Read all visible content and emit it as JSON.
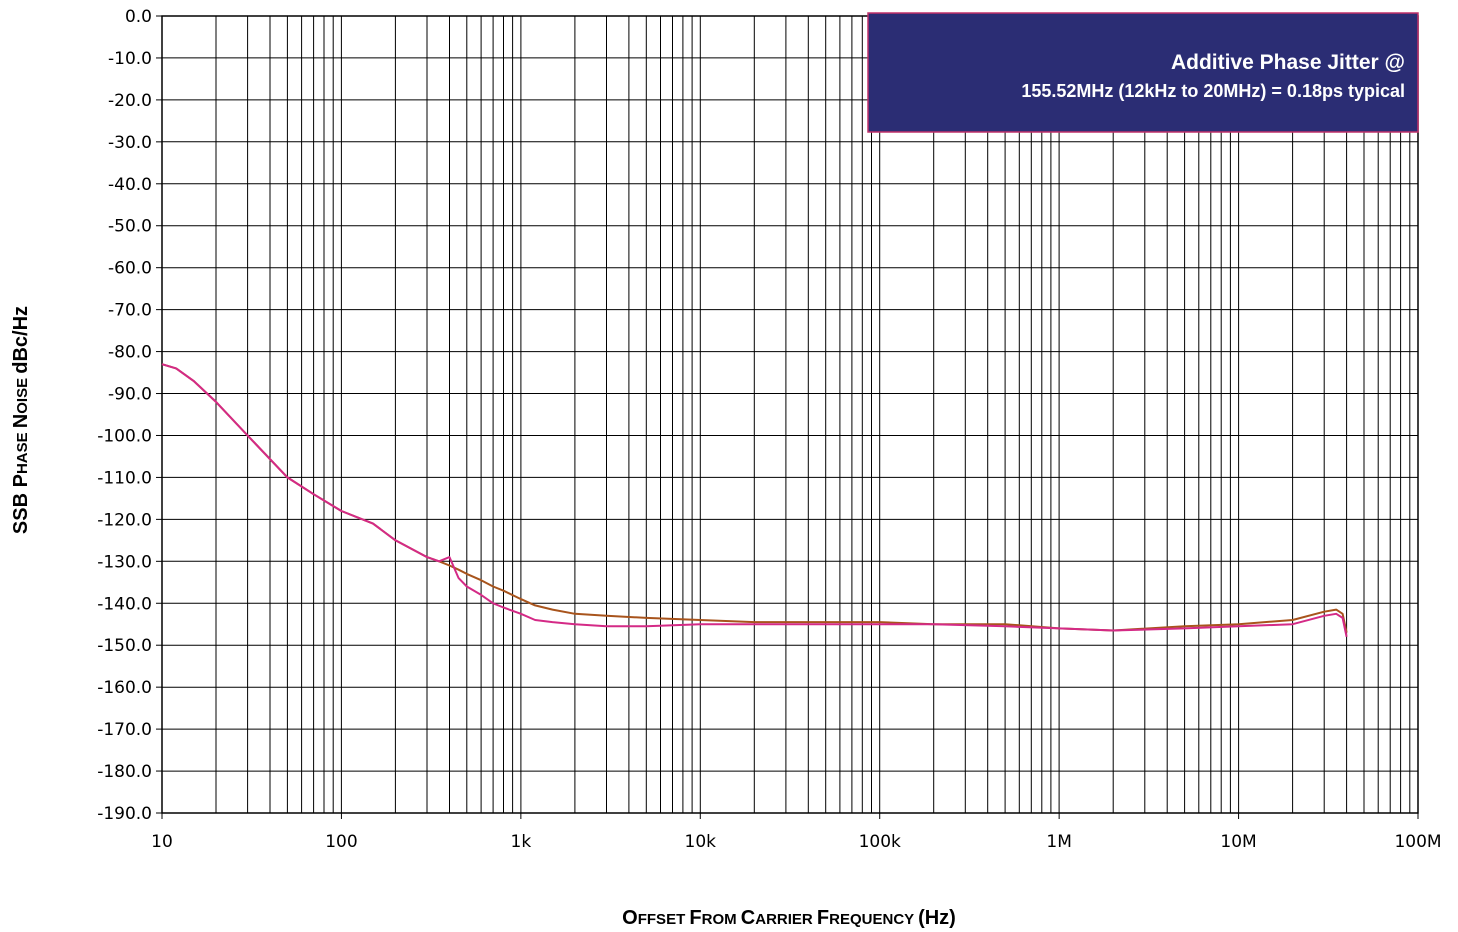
{
  "chart_data": {
    "type": "line",
    "xscale": "log",
    "xlim": [
      10,
      100000000
    ],
    "ylim": [
      -190,
      0
    ],
    "grid": true,
    "xlabel": {
      "big1": "O",
      "small1": "FFSET ",
      "big2": "F",
      "small2": "ROM ",
      "big3": "C",
      "small3": "ARRIER ",
      "big4": "F",
      "small4": "REQUENCY ",
      "tail": "(Hz)"
    },
    "ylabel": {
      "part1": "SSB P",
      "small1": "HASE ",
      "part2": "N",
      "small2": "OISE ",
      "part3": "dBc/Hz"
    },
    "x_ticks": [
      {
        "value": 10,
        "label": "10"
      },
      {
        "value": 100,
        "label": "100"
      },
      {
        "value": 1000,
        "label": "1k"
      },
      {
        "value": 10000,
        "label": "10k"
      },
      {
        "value": 100000,
        "label": "100k"
      },
      {
        "value": 1000000,
        "label": "1M"
      },
      {
        "value": 10000000,
        "label": "10M"
      },
      {
        "value": 100000000,
        "label": "100M"
      }
    ],
    "y_ticks": [
      {
        "value": 0,
        "label": "0.0"
      },
      {
        "value": -10,
        "label": "-10.0"
      },
      {
        "value": -20,
        "label": "-20.0"
      },
      {
        "value": -30,
        "label": "-30.0"
      },
      {
        "value": -40,
        "label": "-40.0"
      },
      {
        "value": -50,
        "label": "-50.0"
      },
      {
        "value": -60,
        "label": "-60.0"
      },
      {
        "value": -70,
        "label": "-70.0"
      },
      {
        "value": -80,
        "label": "-80.0"
      },
      {
        "value": -90,
        "label": "-90.0"
      },
      {
        "value": -100,
        "label": "-100.0"
      },
      {
        "value": -110,
        "label": "-110.0"
      },
      {
        "value": -120,
        "label": "-120.0"
      },
      {
        "value": -130,
        "label": "-130.0"
      },
      {
        "value": -140,
        "label": "-140.0"
      },
      {
        "value": -150,
        "label": "-150.0"
      },
      {
        "value": -160,
        "label": "-160.0"
      },
      {
        "value": -170,
        "label": "-170.0"
      },
      {
        "value": -180,
        "label": "-180.0"
      },
      {
        "value": -190,
        "label": "-190.0"
      }
    ],
    "annotation": {
      "line1": "Additive Phase Jitter @",
      "line2": "155.52MHz (12kHz to 20MHz) = 0.18ps typical",
      "background": "#2b2d74",
      "border": "#c0306a",
      "text_color": "#ffffff"
    },
    "series": [
      {
        "color": "#a8541c",
        "x": [
          10,
          12,
          15,
          20,
          30,
          50,
          70,
          100,
          150,
          200,
          300,
          350,
          400,
          450,
          500,
          600,
          700,
          800,
          1000,
          1200,
          1500,
          2000,
          3000,
          5000,
          10000,
          20000,
          50000,
          100000,
          200000,
          500000,
          1000000,
          2000000,
          5000000,
          10000000,
          20000000,
          30000000,
          35000000,
          38000000,
          40000000
        ],
        "y": [
          -83,
          -84,
          -87,
          -92,
          -100,
          -110,
          -114,
          -118,
          -121,
          -125,
          -129,
          -130,
          -131,
          -132,
          -133,
          -134.5,
          -136,
          -137,
          -139,
          -140.5,
          -141.5,
          -142.5,
          -143,
          -143.5,
          -144,
          -144.5,
          -144.5,
          -144.5,
          -145,
          -145,
          -146,
          -146.5,
          -145.5,
          -145,
          -144,
          -142,
          -141.5,
          -142.5,
          -147
        ]
      },
      {
        "color": "#d42a86",
        "x": [
          10,
          12,
          15,
          20,
          30,
          50,
          70,
          100,
          150,
          200,
          300,
          350,
          400,
          450,
          500,
          600,
          700,
          800,
          1000,
          1200,
          1500,
          2000,
          3000,
          5000,
          10000,
          20000,
          50000,
          100000,
          200000,
          500000,
          1000000,
          2000000,
          5000000,
          10000000,
          20000000,
          30000000,
          35000000,
          38000000,
          40000000
        ],
        "y": [
          -83,
          -84,
          -87,
          -92,
          -100,
          -110,
          -114,
          -118,
          -121,
          -125,
          -129,
          -130,
          -129,
          -134,
          -136,
          -138,
          -140,
          -141,
          -142.5,
          -144,
          -144.5,
          -145,
          -145.5,
          -145.5,
          -145,
          -145,
          -145,
          -145,
          -145,
          -145.5,
          -146,
          -146.5,
          -146,
          -145.5,
          -145,
          -143,
          -142.5,
          -143.5,
          -148
        ]
      }
    ]
  }
}
